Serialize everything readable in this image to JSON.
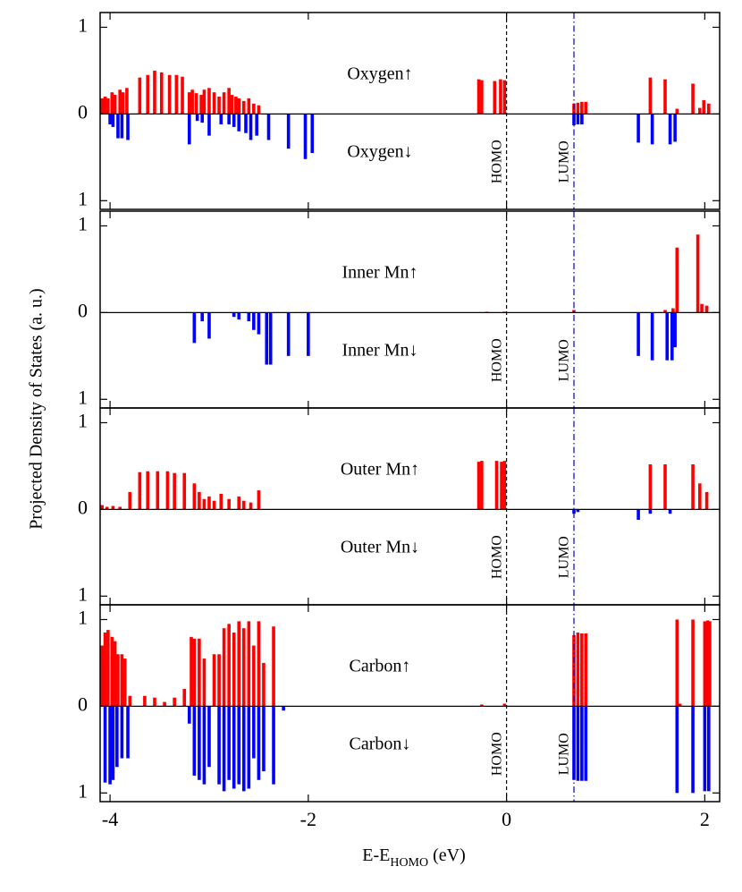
{
  "figure": {
    "y_label": "Projected Density of States (a. u.)",
    "x_label": {
      "main": "E-E",
      "sub": "HOMO",
      "unit": "(eV)"
    }
  },
  "chart_data": [
    {
      "type": "bar",
      "xlim": [
        -4.1,
        2.15
      ],
      "ylim": [
        -1.1,
        1.17
      ],
      "xticks": [
        -4,
        -2,
        0,
        2
      ],
      "show_xtick_labels": false,
      "yticks": [
        {
          "value": -1,
          "label": "1"
        },
        0,
        1
      ],
      "vlines": [
        {
          "x": 0,
          "label": "HOMO",
          "color": "#000000",
          "style": "dashed"
        },
        {
          "x": 0.68,
          "label": "LUMO",
          "color": "#0000cc",
          "style": "dashdot"
        }
      ],
      "series": [
        {
          "name": "Oxygen↑",
          "color": "#ff0000",
          "x": [
            -4.08,
            -4.05,
            -4.02,
            -3.98,
            -3.95,
            -3.9,
            -3.87,
            -3.83,
            -3.7,
            -3.62,
            -3.55,
            -3.48,
            -3.4,
            -3.33,
            -3.27,
            -3.2,
            -3.17,
            -3.13,
            -3.08,
            -3.05,
            -3.0,
            -2.95,
            -2.9,
            -2.85,
            -2.8,
            -2.77,
            -2.73,
            -2.7,
            -2.65,
            -2.6,
            -2.55,
            -2.5,
            -0.28,
            -0.25,
            -0.12,
            -0.06,
            -0.02,
            0.68,
            0.72,
            0.76,
            0.8,
            1.45,
            1.6,
            1.72,
            1.88,
            1.95,
            1.99,
            2.04
          ],
          "values": [
            0.18,
            0.2,
            0.18,
            0.25,
            0.22,
            0.28,
            0.25,
            0.3,
            0.42,
            0.45,
            0.5,
            0.48,
            0.45,
            0.45,
            0.43,
            0.25,
            0.28,
            0.24,
            0.22,
            0.28,
            0.3,
            0.25,
            0.2,
            0.25,
            0.3,
            0.22,
            0.2,
            0.18,
            0.15,
            0.18,
            0.12,
            0.1,
            0.4,
            0.39,
            0.38,
            0.4,
            0.39,
            0.12,
            0.13,
            0.14,
            0.14,
            0.42,
            0.4,
            0.06,
            0.35,
            0.07,
            0.16,
            0.12
          ]
        },
        {
          "name": "Oxygen↓",
          "color": "#0000ff",
          "x": [
            -4.0,
            -3.97,
            -3.92,
            -3.88,
            -3.82,
            -3.2,
            -3.12,
            -3.07,
            -3.0,
            -2.88,
            -2.8,
            -2.75,
            -2.7,
            -2.63,
            -2.58,
            -2.52,
            -2.4,
            -2.2,
            -2.03,
            -1.96,
            0.68,
            0.72,
            0.76,
            1.33,
            1.47,
            1.65,
            1.7
          ],
          "values": [
            -0.12,
            -0.15,
            -0.28,
            -0.28,
            -0.3,
            -0.35,
            -0.08,
            -0.1,
            -0.25,
            -0.12,
            -0.12,
            -0.15,
            -0.2,
            -0.22,
            -0.3,
            -0.25,
            -0.3,
            -0.4,
            -0.52,
            -0.45,
            -0.13,
            -0.12,
            -0.12,
            -0.33,
            -0.35,
            -0.35,
            -0.32
          ]
        }
      ]
    },
    {
      "type": "bar",
      "xlim": [
        -4.1,
        2.15
      ],
      "ylim": [
        -1.1,
        1.17
      ],
      "xticks": [
        -4,
        -2,
        0,
        2
      ],
      "show_xtick_labels": false,
      "yticks": [
        {
          "value": -1,
          "label": "1"
        },
        0,
        1
      ],
      "vlines": [
        {
          "x": 0,
          "label": "HOMO",
          "color": "#000000",
          "style": "dashed"
        },
        {
          "x": 0.68,
          "label": "LUMO",
          "color": "#0000cc",
          "style": "dashdot"
        }
      ],
      "series": [
        {
          "name": "Inner Mn↑",
          "color": "#ff0000",
          "x": [
            -0.2,
            -0.02,
            0.68,
            1.6,
            1.68,
            1.72,
            1.93,
            1.97,
            2.02
          ],
          "values": [
            0.01,
            0.01,
            0.03,
            0.03,
            0.05,
            0.75,
            0.9,
            0.1,
            0.08
          ]
        },
        {
          "name": "Inner Mn↓",
          "color": "#0000ff",
          "x": [
            -3.15,
            -3.07,
            -3.0,
            -2.75,
            -2.7,
            -2.6,
            -2.55,
            -2.5,
            -2.42,
            -2.38,
            -2.2,
            -2.0,
            1.33,
            1.47,
            1.62,
            1.67,
            1.7
          ],
          "values": [
            -0.35,
            -0.1,
            -0.3,
            -0.05,
            -0.08,
            -0.1,
            -0.2,
            -0.25,
            -0.6,
            -0.6,
            -0.5,
            -0.5,
            -0.5,
            -0.55,
            -0.55,
            -0.55,
            -0.4
          ]
        }
      ]
    },
    {
      "type": "bar",
      "xlim": [
        -4.1,
        2.15
      ],
      "ylim": [
        -1.1,
        1.17
      ],
      "xticks": [
        -4,
        -2,
        0,
        2
      ],
      "show_xtick_labels": false,
      "yticks": [
        {
          "value": -1,
          "label": "1"
        },
        0,
        1
      ],
      "vlines": [
        {
          "x": 0,
          "label": "HOMO",
          "color": "#000000",
          "style": "dashed"
        },
        {
          "x": 0.68,
          "label": "LUMO",
          "color": "#0000cc",
          "style": "dashdot"
        }
      ],
      "series": [
        {
          "name": "Outer Mn↑",
          "color": "#ff0000",
          "x": [
            -4.08,
            -4.03,
            -3.97,
            -3.9,
            -3.8,
            -3.7,
            -3.62,
            -3.52,
            -3.42,
            -3.35,
            -3.25,
            -3.15,
            -3.1,
            -3.05,
            -3.0,
            -2.95,
            -2.88,
            -2.8,
            -2.7,
            -2.65,
            -2.58,
            -2.5,
            -0.28,
            -0.25,
            -0.1,
            -0.05,
            -0.02,
            1.45,
            1.6,
            1.88,
            1.95,
            2.02
          ],
          "values": [
            0.05,
            0.03,
            0.04,
            0.03,
            0.2,
            0.43,
            0.44,
            0.44,
            0.44,
            0.42,
            0.42,
            0.3,
            0.2,
            0.12,
            0.15,
            0.1,
            0.18,
            0.12,
            0.15,
            0.1,
            0.08,
            0.22,
            0.55,
            0.56,
            0.56,
            0.55,
            0.56,
            0.52,
            0.52,
            0.52,
            0.3,
            0.2
          ]
        },
        {
          "name": "Outer Mn↓",
          "color": "#0000ff",
          "x": [
            0.68,
            0.72,
            1.33,
            1.45,
            1.65
          ],
          "values": [
            -0.05,
            -0.03,
            -0.12,
            -0.05,
            -0.05
          ]
        }
      ]
    },
    {
      "type": "bar",
      "xlim": [
        -4.1,
        2.15
      ],
      "ylim": [
        -1.1,
        1.17
      ],
      "xticks": [
        -4,
        -2,
        0,
        2
      ],
      "show_xtick_labels": true,
      "yticks": [
        {
          "value": -1,
          "label": "1"
        },
        0,
        1
      ],
      "vlines": [
        {
          "x": 0,
          "label": "HOMO",
          "color": "#000000",
          "style": "dashed"
        },
        {
          "x": 0.68,
          "label": "LUMO",
          "color": "#0000cc",
          "style": "dashdot"
        }
      ],
      "series": [
        {
          "name": "Carbon↑",
          "color": "#ff0000",
          "x": [
            -4.08,
            -4.05,
            -4.02,
            -3.98,
            -3.95,
            -3.92,
            -3.88,
            -3.85,
            -3.8,
            -3.65,
            -3.55,
            -3.45,
            -3.35,
            -3.25,
            -3.18,
            -3.15,
            -3.1,
            -3.05,
            -2.95,
            -2.9,
            -2.85,
            -2.8,
            -2.75,
            -2.7,
            -2.65,
            -2.6,
            -2.55,
            -2.5,
            -2.45,
            -2.35,
            -0.25,
            -0.02,
            0.68,
            0.72,
            0.76,
            0.8,
            1.72,
            1.75,
            1.88,
            2.0,
            2.03,
            2.05
          ],
          "values": [
            0.7,
            0.85,
            0.88,
            0.8,
            0.75,
            0.6,
            0.6,
            0.55,
            0.12,
            0.12,
            0.1,
            0.05,
            0.1,
            0.2,
            0.8,
            0.78,
            0.78,
            0.55,
            0.6,
            0.6,
            0.9,
            0.95,
            0.85,
            0.98,
            0.9,
            0.98,
            0.7,
            0.98,
            0.5,
            0.92,
            0.02,
            0.03,
            0.82,
            0.85,
            0.84,
            0.84,
            1.0,
            0.03,
            1.0,
            0.98,
            0.99,
            0.98
          ]
        },
        {
          "name": "Carbon↓",
          "color": "#0000ff",
          "x": [
            -4.05,
            -4.0,
            -3.97,
            -3.93,
            -3.88,
            -3.82,
            -3.2,
            -3.15,
            -3.1,
            -3.05,
            -3.0,
            -2.9,
            -2.85,
            -2.8,
            -2.75,
            -2.7,
            -2.65,
            -2.6,
            -2.55,
            -2.5,
            -2.45,
            -2.35,
            -2.25,
            0.68,
            0.72,
            0.76,
            0.8,
            1.72,
            1.88,
            2.0,
            2.04
          ],
          "values": [
            -0.88,
            -0.9,
            -0.85,
            -0.7,
            -0.6,
            -0.6,
            -0.2,
            -0.8,
            -0.85,
            -0.9,
            -0.7,
            -0.9,
            -0.98,
            -0.85,
            -0.95,
            -0.9,
            -0.98,
            -0.95,
            -0.6,
            -0.85,
            -0.75,
            -0.9,
            -0.05,
            -0.85,
            -0.86,
            -0.86,
            -0.86,
            -1.0,
            -1.0,
            -0.98,
            -0.98
          ]
        }
      ]
    }
  ]
}
